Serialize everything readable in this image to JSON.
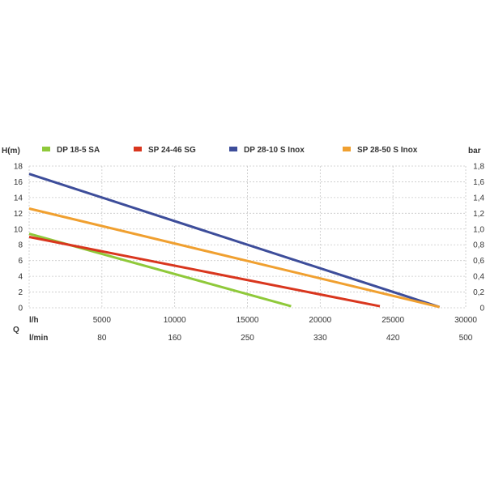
{
  "chart_data": {
    "type": "line",
    "yleft_label": "H(m)",
    "yright_label": "bar",
    "q_label": "Q",
    "x_unit_label": "l/h",
    "x2_unit_label": "l/min",
    "xlim": [
      0,
      30000
    ],
    "ylim": [
      0,
      18
    ],
    "yright_lim": [
      0,
      1.8
    ],
    "x_ticks": [
      5000,
      10000,
      15000,
      20000,
      25000,
      30000
    ],
    "x2_ticks": [
      "80",
      "160",
      "250",
      "330",
      "420",
      "500"
    ],
    "y_ticks": [
      0,
      2,
      4,
      6,
      8,
      10,
      12,
      14,
      16,
      18
    ],
    "yright_ticks": [
      "0",
      "0,2",
      "0,4",
      "0,6",
      "0,8",
      "1,0",
      "1,2",
      "1,4",
      "1,6",
      "1,8"
    ],
    "grid": true,
    "legend_position": "top",
    "series": [
      {
        "name": "DP 18-5 SA",
        "color": "#8fc93a",
        "points": [
          [
            0,
            9.4
          ],
          [
            18000,
            0.2
          ]
        ]
      },
      {
        "name": "SP 24-46 SG",
        "color": "#d9361e",
        "points": [
          [
            0,
            9.0
          ],
          [
            24100,
            0.2
          ]
        ]
      },
      {
        "name": "DP 28-10 S Inox",
        "color": "#3d4d9a",
        "points": [
          [
            0,
            17.0
          ],
          [
            28200,
            0.1
          ]
        ]
      },
      {
        "name": "SP 28-50 S Inox",
        "color": "#f0a030",
        "points": [
          [
            0,
            12.6
          ],
          [
            28200,
            0.1
          ]
        ]
      }
    ]
  }
}
